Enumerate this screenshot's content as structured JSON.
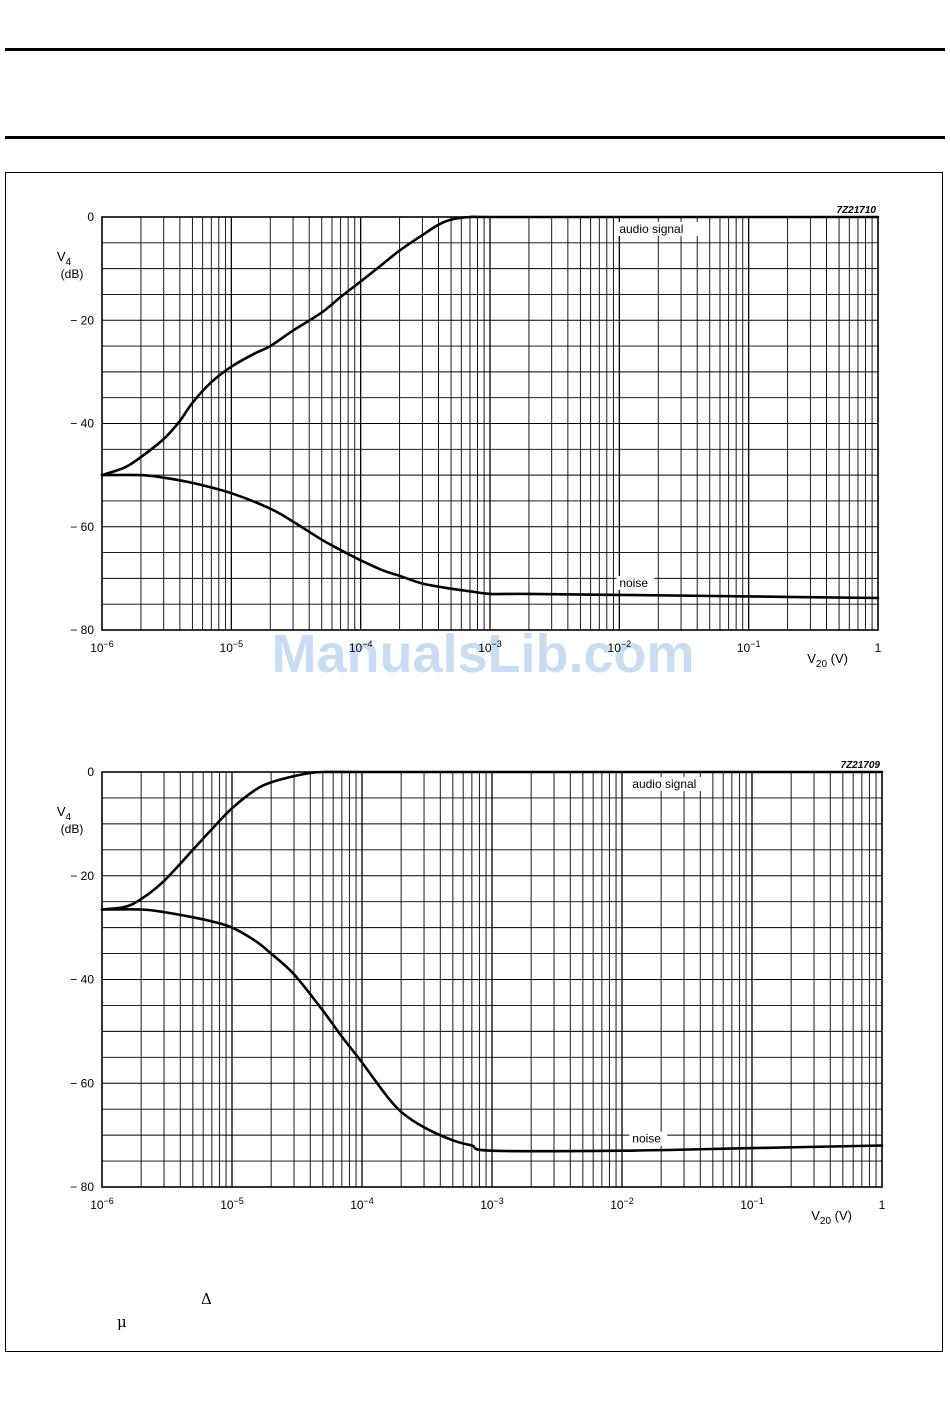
{
  "watermark": "ManualsLib.com",
  "symbols": {
    "delta": "Δ",
    "mu": "μ"
  },
  "chart_data": [
    {
      "type": "line",
      "figure_code": "7Z21710",
      "xlabel": "V",
      "xlabel_sub": "20",
      "xlabel_unit": "(V)",
      "ylabel": "V",
      "ylabel_sub": "4",
      "ylabel_unit": "(dB)",
      "x_scale": "log",
      "xlim": [
        1e-06,
        1
      ],
      "ylim": [
        -80,
        0
      ],
      "y_ticks": [
        "0",
        "− 20",
        "− 40",
        "− 60",
        "− 80"
      ],
      "x_ticks": [
        {
          "base": "10",
          "exp": "−6"
        },
        {
          "base": "10",
          "exp": "−5"
        },
        {
          "base": "10",
          "exp": "−4"
        },
        {
          "base": "10",
          "exp": "−3"
        },
        {
          "base": "10",
          "exp": "−2"
        },
        {
          "base": "10",
          "exp": "−1"
        },
        {
          "base": "1",
          "exp": ""
        }
      ],
      "grid": true,
      "series": [
        {
          "name": "audio signal",
          "x": [
            1e-06,
            1.5e-06,
            2e-06,
            3e-06,
            4e-06,
            5e-06,
            7e-06,
            1e-05,
            1.5e-05,
            2e-05,
            3e-05,
            5e-05,
            7e-05,
            0.0001,
            0.00015,
            0.0002,
            0.0003,
            0.0004,
            0.0005,
            0.0007,
            0.001,
            0.01,
            0.1,
            1
          ],
          "y": [
            -50,
            -48.5,
            -46.5,
            -43,
            -39.5,
            -36,
            -32,
            -29,
            -26.5,
            -25,
            -22,
            -18.5,
            -15.5,
            -12.5,
            -9,
            -6.5,
            -3.5,
            -1.5,
            -0.5,
            0,
            0,
            0,
            0,
            0
          ]
        },
        {
          "name": "noise",
          "x": [
            1e-06,
            2e-06,
            3e-06,
            5e-06,
            1e-05,
            2e-05,
            3e-05,
            5e-05,
            7e-05,
            0.0001,
            0.00015,
            0.0002,
            0.0003,
            0.0005,
            0.0007,
            0.001,
            0.002,
            0.01,
            0.1,
            1
          ],
          "y": [
            -50,
            -50,
            -50.5,
            -51.5,
            -53.5,
            -56.5,
            -59,
            -62.5,
            -64.5,
            -66.5,
            -68.5,
            -69.5,
            -71,
            -72,
            -72.5,
            -73,
            -73,
            -73.2,
            -73.5,
            -73.8
          ]
        }
      ]
    },
    {
      "type": "line",
      "figure_code": "7Z21709",
      "xlabel": "V",
      "xlabel_sub": "20",
      "xlabel_unit": "(V)",
      "ylabel": "V",
      "ylabel_sub": "4",
      "ylabel_unit": "(dB)",
      "x_scale": "log",
      "xlim": [
        1e-06,
        1
      ],
      "ylim": [
        -80,
        0
      ],
      "y_ticks": [
        "0",
        "− 20",
        "− 40",
        "− 60",
        "− 80"
      ],
      "x_ticks": [
        {
          "base": "10",
          "exp": "−6"
        },
        {
          "base": "10",
          "exp": "−5"
        },
        {
          "base": "10",
          "exp": "−4"
        },
        {
          "base": "10",
          "exp": "−3"
        },
        {
          "base": "10",
          "exp": "−2"
        },
        {
          "base": "10",
          "exp": "−1"
        },
        {
          "base": "1",
          "exp": ""
        }
      ],
      "grid": true,
      "series": [
        {
          "name": "audio signal",
          "x": [
            1e-06,
            1.5e-06,
            2e-06,
            3e-06,
            5e-06,
            7e-06,
            1e-05,
            1.5e-05,
            2e-05,
            3e-05,
            4e-05,
            5e-05,
            0.0001,
            0.001,
            0.01,
            0.1,
            1
          ],
          "y": [
            -26.5,
            -26,
            -24.5,
            -21,
            -15,
            -11,
            -7,
            -3.5,
            -2,
            -0.8,
            -0.2,
            0,
            0,
            0,
            0,
            0,
            0
          ]
        },
        {
          "name": "noise",
          "x": [
            1e-06,
            2e-06,
            3e-06,
            5e-06,
            7e-06,
            1e-05,
            1.5e-05,
            2e-05,
            3e-05,
            5e-05,
            7e-05,
            0.0001,
            0.00015,
            0.0002,
            0.0003,
            0.0005,
            0.0007,
            0.001,
            0.01,
            0.1,
            1
          ],
          "y": [
            -26.5,
            -26.5,
            -27,
            -28,
            -28.8,
            -30,
            -32.5,
            -35,
            -39,
            -46,
            -51,
            -56,
            -62,
            -65.5,
            -68.5,
            -71,
            -72,
            -73,
            -73,
            -72.5,
            -72
          ]
        }
      ]
    }
  ]
}
